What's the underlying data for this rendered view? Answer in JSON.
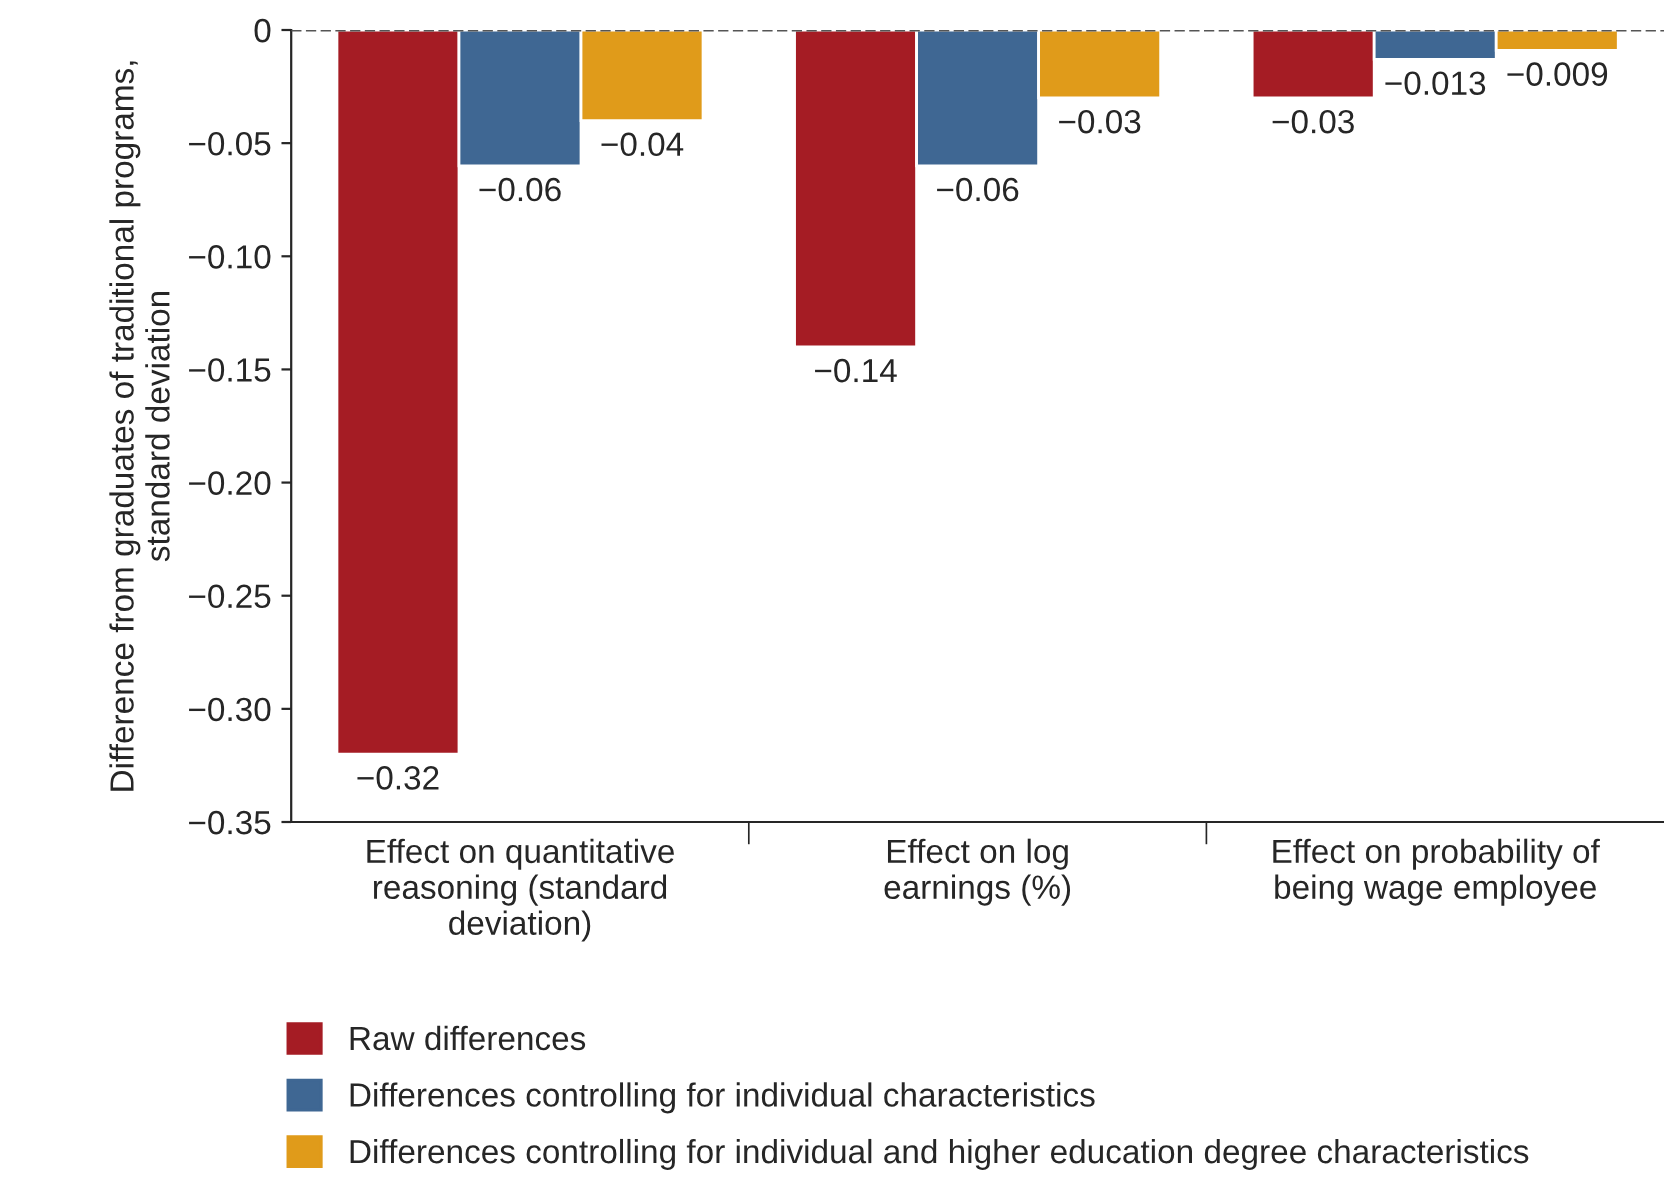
{
  "chart_data": {
    "type": "bar",
    "ylabel": "Difference from graduates of traditional programs,\nstandard deviation",
    "categories": [
      "Effect on quantitative\nreasoning (standard\ndeviation)",
      "Effect on log\nearnings (%)",
      "Effect on probability of\nbeing wage employee"
    ],
    "series": [
      {
        "name": "Raw differences",
        "color": "#a51c24",
        "values": [
          -0.32,
          -0.14,
          -0.03
        ],
        "value_labels": [
          "−0.32",
          "−0.14",
          "−0.03"
        ]
      },
      {
        "name": "Differences controlling for individual characteristics",
        "color": "#3f6793",
        "values": [
          -0.06,
          -0.06,
          -0.013
        ],
        "value_labels": [
          "−0.06",
          "−0.06",
          "−0.013"
        ]
      },
      {
        "name": "Differences controlling for individual and higher education degree characteristics",
        "color": "#e09b1a",
        "values": [
          -0.04,
          -0.03,
          -0.009
        ],
        "value_labels": [
          "−0.04",
          "−0.03",
          "−0.009"
        ]
      }
    ],
    "ylim": [
      -0.35,
      0
    ],
    "yticks": [
      {
        "value": -0.35,
        "label": "−0.35"
      },
      {
        "value": -0.3,
        "label": "−0.30"
      },
      {
        "value": -0.25,
        "label": "−0.25"
      },
      {
        "value": -0.2,
        "label": "−0.20"
      },
      {
        "value": -0.15,
        "label": "−0.15"
      },
      {
        "value": -0.1,
        "label": "−0.10"
      },
      {
        "value": -0.05,
        "label": "−0.05"
      },
      0
    ],
    "ref_lines": [
      {
        "axis": "y",
        "value": 0,
        "line_style": "dashed",
        "color": "#555555"
      }
    ],
    "legend": "bottom left",
    "grid": false
  }
}
